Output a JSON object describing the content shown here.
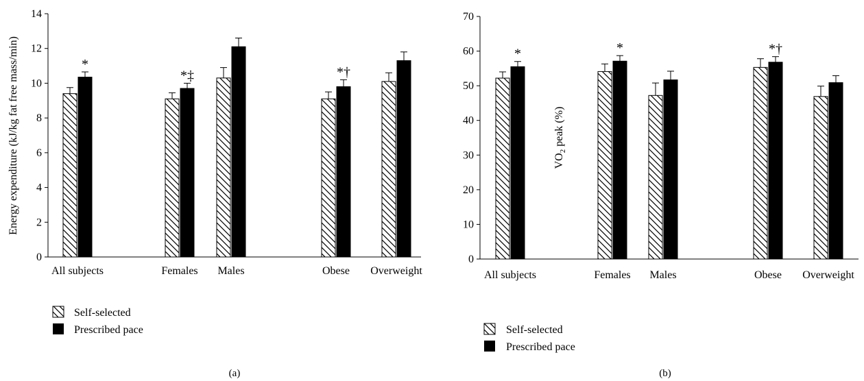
{
  "panels": [
    {
      "panel_label": "(a)",
      "ylabel": "Energy expenditure (kJ/kg fat free mass/min)",
      "legend": [
        "Self-selected",
        "Prescribed pace"
      ]
    },
    {
      "panel_label": "(b)",
      "ylabel_main": "VO",
      "ylabel_sub": "2",
      "ylabel_rest": " peak (%)",
      "legend": [
        "Self-selected",
        "Prescribed pace"
      ]
    }
  ],
  "chart_data": [
    {
      "type": "bar",
      "panel": "(a)",
      "ylabel": "Energy expenditure (kJ/kg fat free mass/min)",
      "ylim": [
        0,
        14
      ],
      "yticks": [
        0,
        2,
        4,
        6,
        8,
        10,
        12,
        14
      ],
      "categories": [
        "All subjects",
        "Females",
        "Males",
        "Obese",
        "Overweight"
      ],
      "series": [
        {
          "name": "Self-selected",
          "pattern": "hatched",
          "color": "#ffffff",
          "values": [
            9.4,
            9.1,
            10.3,
            9.1,
            10.1
          ],
          "errors": [
            0.35,
            0.35,
            0.6,
            0.4,
            0.5
          ]
        },
        {
          "name": "Prescribed pace",
          "pattern": "solid",
          "color": "#000000",
          "values": [
            10.35,
            9.7,
            12.1,
            9.8,
            11.3
          ],
          "errors": [
            0.3,
            0.3,
            0.5,
            0.4,
            0.5
          ]
        }
      ],
      "annotations": [
        {
          "category": "All subjects",
          "series": "Prescribed pace",
          "text": "*"
        },
        {
          "category": "Females",
          "series": "Prescribed pace",
          "text": "*‡"
        },
        {
          "category": "Obese",
          "series": "Prescribed pace",
          "text": "*†"
        }
      ],
      "grid": false,
      "legend_position": "bottom-left"
    },
    {
      "type": "bar",
      "panel": "(b)",
      "ylabel": "VO2 peak (%)",
      "ylim": [
        0,
        70
      ],
      "yticks": [
        0,
        10,
        20,
        30,
        40,
        50,
        60,
        70
      ],
      "categories": [
        "All subjects",
        "Females",
        "Males",
        "Obese",
        "Overweight"
      ],
      "series": [
        {
          "name": "Self-selected",
          "pattern": "hatched",
          "color": "#ffffff",
          "values": [
            52.2,
            54.1,
            47.2,
            55.3,
            46.9
          ],
          "errors": [
            1.8,
            2.2,
            3.6,
            2.5,
            3.0
          ]
        },
        {
          "name": "Prescribed pace",
          "pattern": "solid",
          "color": "#000000",
          "values": [
            55.5,
            57.1,
            51.7,
            56.8,
            50.9
          ],
          "errors": [
            1.5,
            1.6,
            2.5,
            1.6,
            2.0
          ]
        }
      ],
      "annotations": [
        {
          "category": "All subjects",
          "series": "Prescribed pace",
          "text": "*"
        },
        {
          "category": "Females",
          "series": "Prescribed pace",
          "text": "*"
        },
        {
          "category": "Obese",
          "series": "Prescribed pace",
          "text": "*†"
        }
      ],
      "grid": false,
      "legend_position": "bottom-left"
    }
  ]
}
